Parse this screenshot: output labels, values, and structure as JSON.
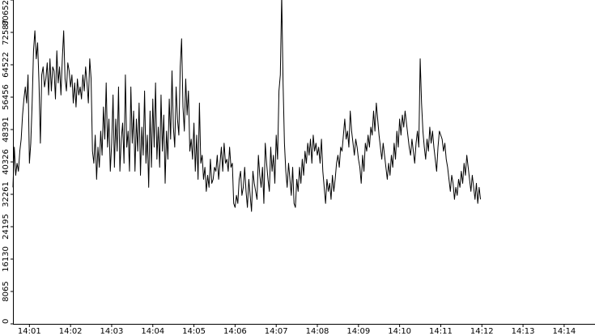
{
  "chart_data": {
    "type": "line",
    "title": "",
    "xlabel": "",
    "ylabel": "",
    "grid": false,
    "legend": "none",
    "line_color": "#000000",
    "background_color": "#ffffff",
    "y_ticks": [
      0,
      8065,
      16130,
      24195,
      32261,
      40326,
      48391,
      56456,
      64522,
      72587,
      80652
    ],
    "ylim": [
      0,
      80652
    ],
    "x_ticks": [
      "14:01",
      "14:02",
      "14:03",
      "14:04",
      "14:05",
      "14:06",
      "14:07",
      "14:08",
      "14:09",
      "14:10",
      "14:11",
      "14:12",
      "14:13",
      "14:14"
    ],
    "xlim": [
      "14:00:36",
      "14:14:45"
    ],
    "series": [
      {
        "sample_interval_seconds": 2,
        "start_time": "14:00:36",
        "values": [
          34000,
          44000,
          37000,
          40000,
          38000,
          43000,
          46000,
          52000,
          56000,
          59000,
          55000,
          62000,
          40000,
          45000,
          55000,
          68000,
          73000,
          66000,
          70000,
          60000,
          45000,
          62000,
          64000,
          59000,
          61000,
          65000,
          57000,
          66000,
          58000,
          64000,
          63000,
          56000,
          68000,
          60000,
          64000,
          57000,
          66000,
          73000,
          61000,
          58000,
          65000,
          63000,
          59000,
          62000,
          55000,
          60000,
          54000,
          61000,
          57000,
          59000,
          56000,
          62000,
          58000,
          64000,
          60000,
          55000,
          66000,
          61000,
          43000,
          40000,
          47000,
          36000,
          44000,
          39000,
          48000,
          42000,
          54000,
          46000,
          60000,
          44000,
          51000,
          38000,
          45000,
          57000,
          39000,
          51000,
          43000,
          59000,
          38000,
          46000,
          50000,
          40000,
          62000,
          44000,
          48000,
          38000,
          59000,
          45000,
          53000,
          38000,
          51000,
          43000,
          55000,
          37000,
          49000,
          42000,
          58000,
          40000,
          47000,
          34000,
          53000,
          39000,
          56000,
          44000,
          60000,
          41000,
          49000,
          39000,
          57000,
          43000,
          52000,
          35000,
          48000,
          41000,
          56000,
          46000,
          63000,
          49000,
          44000,
          59000,
          51000,
          47000,
          64000,
          71000,
          54000,
          48000,
          61000,
          52000,
          58000,
          43000,
          46000,
          41000,
          50000,
          38000,
          47000,
          36000,
          55000,
          40000,
          42000,
          36000,
          39000,
          33000,
          37000,
          34000,
          41000,
          35000,
          36000,
          39000,
          38000,
          42000,
          36000,
          40000,
          44000,
          38000,
          45000,
          40000,
          41000,
          38000,
          44000,
          39000,
          40000,
          30000,
          29000,
          32000,
          30000,
          36000,
          38000,
          32000,
          34000,
          39000,
          33000,
          29000,
          36000,
          32000,
          28000,
          38000,
          35000,
          33000,
          31000,
          42000,
          37000,
          34000,
          39000,
          30000,
          45000,
          40000,
          36000,
          33000,
          44000,
          38000,
          42000,
          35000,
          47000,
          41000,
          58000,
          62000,
          82000,
          60000,
          45000,
          38000,
          34000,
          40000,
          36000,
          32000,
          39000,
          30000,
          29000,
          36000,
          33000,
          39000,
          35000,
          41000,
          37000,
          43000,
          40000,
          45000,
          42000,
          46000,
          40000,
          47000,
          43000,
          45000,
          42000,
          44000,
          40000,
          46000,
          38000,
          34000,
          30000,
          36000,
          33000,
          35000,
          31000,
          37000,
          33000,
          36000,
          40000,
          42000,
          39000,
          44000,
          43000,
          47000,
          51000,
          46000,
          48000,
          44000,
          53000,
          48000,
          45000,
          42000,
          46000,
          44000,
          41000,
          39000,
          35000,
          42000,
          38000,
          45000,
          43000,
          47000,
          44000,
          49000,
          47000,
          53000,
          48000,
          55000,
          51000,
          47000,
          44000,
          41000,
          45000,
          42000,
          39000,
          36000,
          40000,
          37000,
          42000,
          39000,
          45000,
          41000,
          48000,
          44000,
          51000,
          47000,
          52000,
          49000,
          53000,
          50000,
          47000,
          44000,
          42000,
          46000,
          43000,
          40000,
          45000,
          48000,
          44000,
          66000,
          55000,
          48000,
          44000,
          41000,
          46000,
          43000,
          49000,
          45000,
          48000,
          44000,
          41000,
          38000,
          44000,
          48000,
          47000,
          46000,
          43000,
          45000,
          41000,
          39000,
          36000,
          33000,
          37000,
          35000,
          31000,
          34000,
          32000,
          36000,
          34000,
          38000,
          35000,
          40000,
          37000,
          42000,
          39000,
          36000,
          33000,
          37000,
          34000,
          31000,
          35000,
          30000,
          34000,
          31000
        ]
      }
    ]
  }
}
